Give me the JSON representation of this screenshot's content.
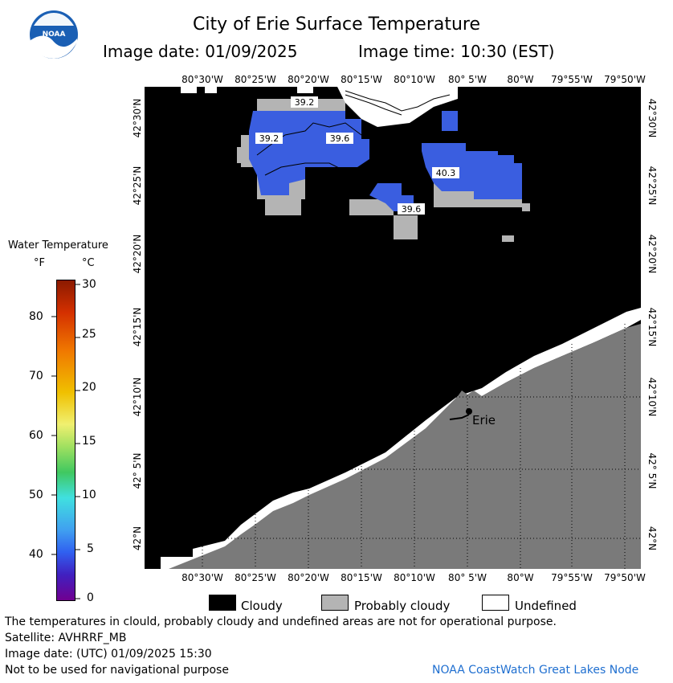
{
  "header": {
    "title": "City of Erie Surface Temperature",
    "image_date": "Image date: 01/09/2025",
    "image_time": "Image time: 10:30 (EST)"
  },
  "logo": {
    "text": "NOAA"
  },
  "map": {
    "lon_labels": [
      "80°30'W",
      "80°25'W",
      "80°20'W",
      "80°15'W",
      "80°10'W",
      "80° 5'W",
      "80°W",
      "79°55'W",
      "79°50'W"
    ],
    "lat_labels": [
      "42°30'N",
      "42°25'N",
      "42°20'N",
      "42°15'N",
      "42°10'N",
      "42° 5'N",
      "42°N"
    ],
    "temp_labels": [
      "39.2",
      "39.2",
      "39.6",
      "40.3",
      "39.6"
    ],
    "city_label": "Erie",
    "colors": {
      "cloud": "#000000",
      "land": "#7a7a7a",
      "probably_cloudy": "#b4b4b4",
      "water": "#3a5ee0",
      "undefined": "#ffffff"
    }
  },
  "legend": {
    "title": "Water Temperature",
    "unit_f": "°F",
    "unit_c": "°C",
    "f_ticks": [
      "80",
      "70",
      "60",
      "50",
      "40"
    ],
    "c_ticks": [
      "30",
      "25",
      "20",
      "15",
      "10",
      "5",
      "0"
    ]
  },
  "key": {
    "cloudy": "Cloudy",
    "probably_cloudy": "Probably cloudy",
    "undefined": "Undefined"
  },
  "footer": {
    "line1": "The temperatures in clould, probably cloudy and undefined areas are not for operational purpose.",
    "line2": "Satellite: AVHRRF_MB",
    "line3": "Image date: (UTC) 01/09/2025  15:30",
    "line4": "Not to be used for navigational purpose",
    "credit": "NOAA CoastWatch Great Lakes Node"
  }
}
